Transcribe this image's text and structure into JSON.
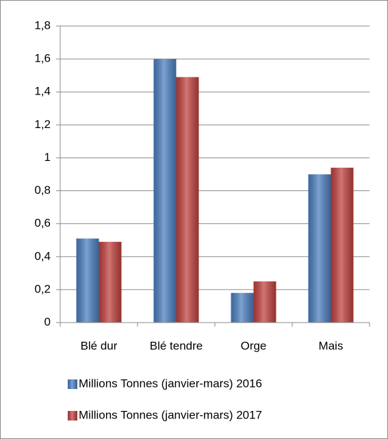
{
  "chart_data": {
    "type": "bar",
    "categories": [
      "Blé dur",
      "Blé tendre",
      "Orge",
      "Mais"
    ],
    "series": [
      {
        "name": "Millions Tonnes (janvier-mars) 2016",
        "color": "#4a7ebf",
        "values": [
          0.51,
          1.6,
          0.18,
          0.9
        ]
      },
      {
        "name": "Millions Tonnes (janvier-mars) 2017",
        "color": "#c0403d",
        "values": [
          0.49,
          1.49,
          0.25,
          0.94
        ]
      }
    ],
    "ylim": [
      0,
      1.8
    ],
    "yticks": [
      0,
      {
        "value": 0.2,
        "label": "0,2"
      },
      {
        "value": 0.4,
        "label": "0,4"
      },
      {
        "value": 0.6,
        "label": "0,6"
      },
      {
        "value": 0.8,
        "label": "0,8"
      },
      1,
      {
        "value": 1.2,
        "label": "1,2"
      },
      {
        "value": 1.4,
        "label": "1,4"
      },
      {
        "value": 1.6,
        "label": "1,6"
      },
      {
        "value": 1.8,
        "label": "1,8"
      }
    ],
    "grid": true,
    "legend": "bottom"
  }
}
